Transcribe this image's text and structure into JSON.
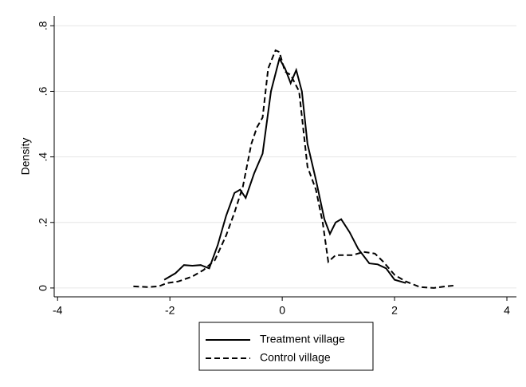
{
  "chart_data": {
    "type": "line",
    "ylabel": "Density",
    "xlim": [
      -4.06,
      4.17
    ],
    "ylim": [
      -0.027,
      0.83
    ],
    "xticks": [
      -4,
      -2,
      0,
      2,
      4
    ],
    "yticks": [
      0,
      {
        "value": 0.2,
        "label": ".2"
      },
      {
        "value": 0.4,
        "label": ".4"
      },
      {
        "value": 0.6,
        "label": ".6"
      },
      {
        "value": 0.8,
        "label": ".8"
      }
    ],
    "grid": true,
    "legend": "bottom",
    "series": [
      {
        "name": "Treatment village",
        "color": "#000000",
        "dash": "solid",
        "x": [
          -2.1,
          -1.9,
          -1.75,
          -1.6,
          -1.45,
          -1.3,
          -1.15,
          -1.0,
          -0.85,
          -0.75,
          -0.65,
          -0.5,
          -0.35,
          -0.2,
          -0.05,
          0.05,
          0.15,
          0.25,
          0.35,
          0.45,
          0.6,
          0.75,
          0.85,
          0.95,
          1.05,
          1.2,
          1.35,
          1.55,
          1.7,
          1.85,
          2.0,
          2.2
        ],
        "values": [
          0.025,
          0.045,
          0.07,
          0.068,
          0.07,
          0.06,
          0.13,
          0.22,
          0.29,
          0.3,
          0.275,
          0.35,
          0.41,
          0.6,
          0.7,
          0.67,
          0.625,
          0.665,
          0.6,
          0.44,
          0.33,
          0.21,
          0.165,
          0.2,
          0.21,
          0.17,
          0.12,
          0.075,
          0.072,
          0.06,
          0.025,
          0.015
        ]
      },
      {
        "name": "Control village",
        "color": "#000000",
        "dash": "dashed",
        "x": [
          -2.65,
          -2.4,
          -2.2,
          -2.05,
          -1.85,
          -1.6,
          -1.4,
          -1.2,
          -1.0,
          -0.85,
          -0.7,
          -0.55,
          -0.45,
          -0.35,
          -0.25,
          -0.12,
          -0.05,
          0.05,
          0.15,
          0.3,
          0.45,
          0.6,
          0.72,
          0.82,
          0.95,
          1.1,
          1.25,
          1.45,
          1.65,
          1.8,
          2.0,
          2.2,
          2.45,
          2.7,
          2.9,
          3.1
        ],
        "values": [
          0.005,
          0.003,
          0.005,
          0.015,
          0.02,
          0.035,
          0.055,
          0.085,
          0.16,
          0.23,
          0.31,
          0.44,
          0.49,
          0.52,
          0.67,
          0.725,
          0.72,
          0.66,
          0.65,
          0.6,
          0.37,
          0.3,
          0.2,
          0.08,
          0.1,
          0.1,
          0.1,
          0.11,
          0.105,
          0.08,
          0.04,
          0.02,
          0.003,
          0.0,
          0.005,
          0.008
        ]
      }
    ]
  }
}
